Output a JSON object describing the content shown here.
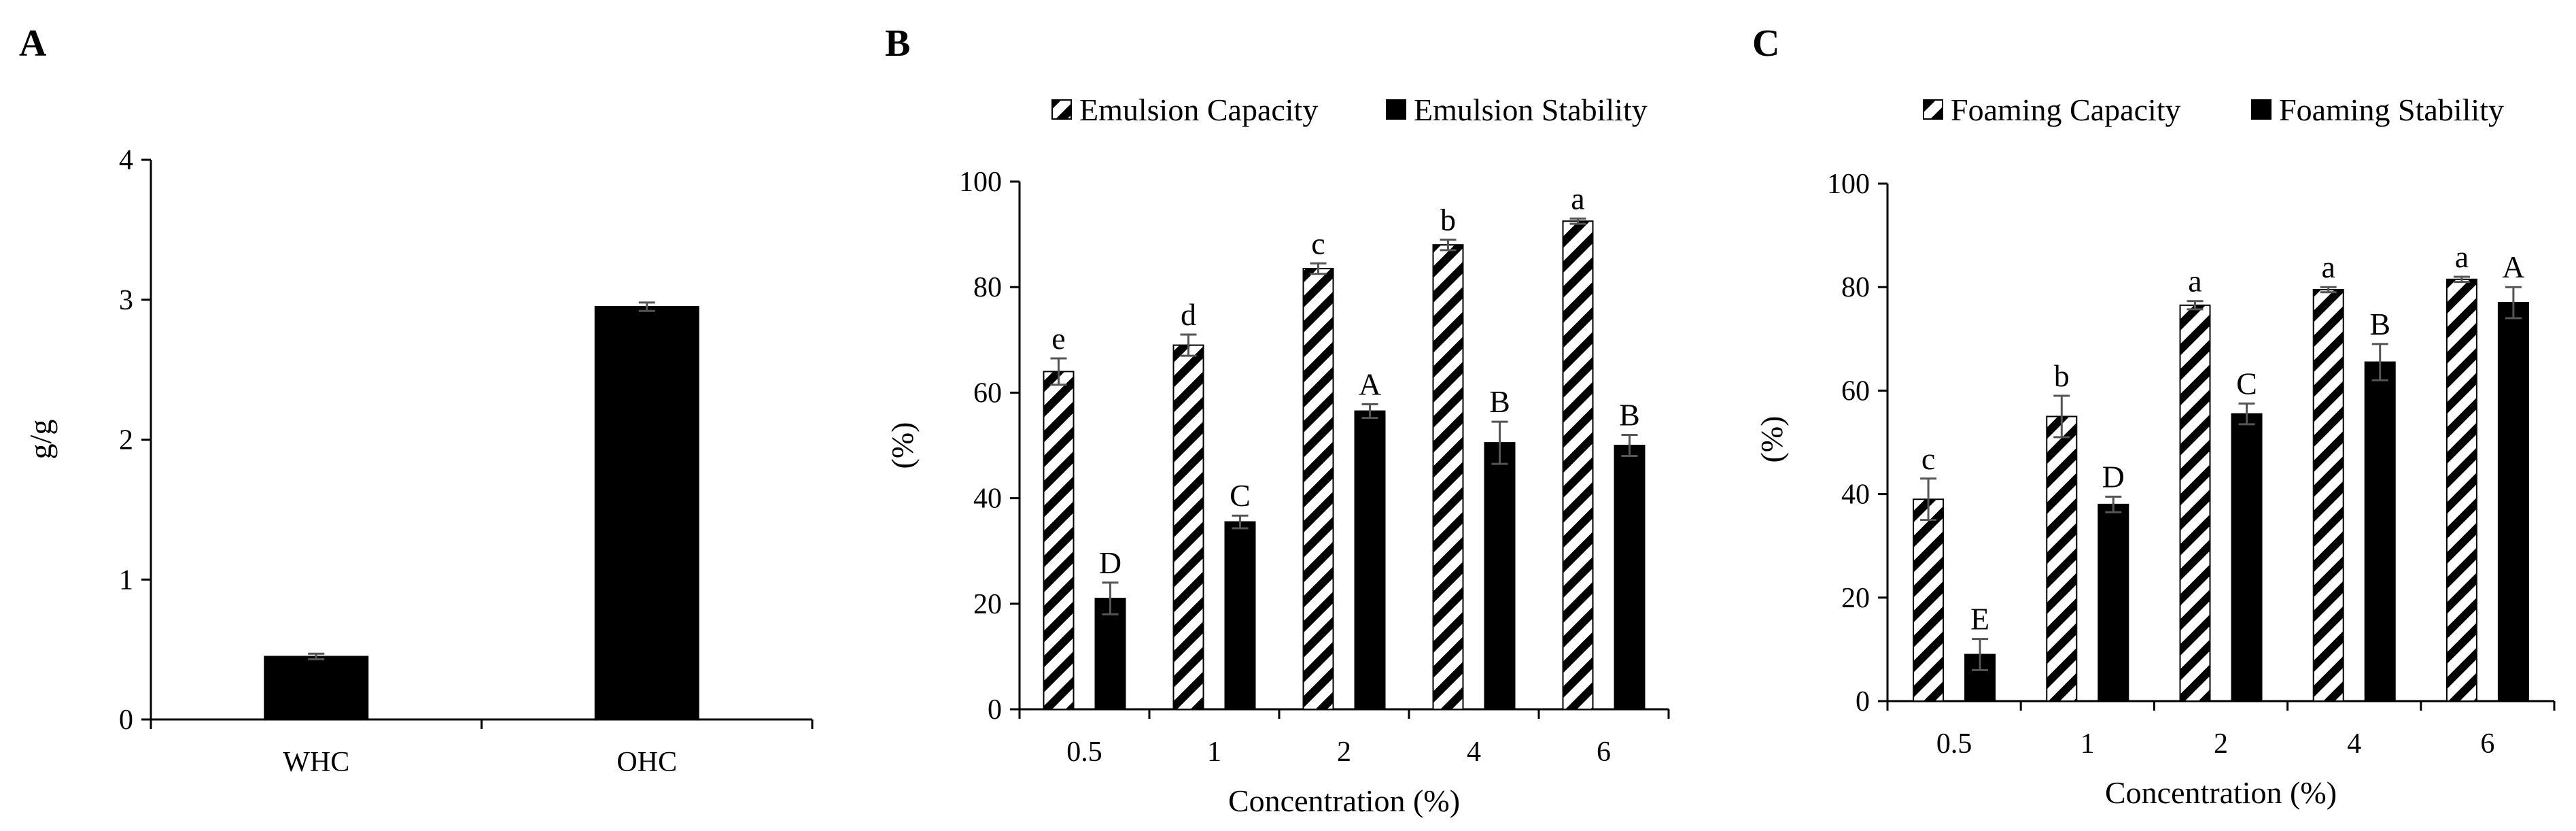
{
  "colors": {
    "bar_solid": "#000000",
    "hatch_bg": "#ffffff",
    "hatch_line": "#000000",
    "error_bar": "#555555"
  },
  "chart_data": [
    {
      "panel": "A",
      "type": "bar",
      "categories": [
        "WHC",
        "OHC"
      ],
      "series": [
        {
          "name": "",
          "values": [
            0.45,
            2.95
          ],
          "errors": [
            0.02,
            0.03
          ],
          "style": "solid"
        }
      ],
      "xlabel": "",
      "ylabel": "g/g",
      "ylim": [
        0,
        4
      ],
      "yticks": [
        0,
        1,
        2,
        3,
        4
      ],
      "legend": []
    },
    {
      "panel": "B",
      "type": "bar",
      "categories": [
        "0.5",
        "1",
        "2",
        "4",
        "6"
      ],
      "series": [
        {
          "name": "Emulsion Capacity",
          "values": [
            64,
            69,
            83.5,
            88,
            92.5
          ],
          "errors": [
            2.5,
            2,
            1,
            1,
            0.5
          ],
          "labels": [
            "e",
            "d",
            "c",
            "b",
            "a"
          ],
          "style": "hatch"
        },
        {
          "name": "Emulsion Stability",
          "values": [
            21,
            35.5,
            56.5,
            50.5,
            50
          ],
          "errors": [
            3,
            1.2,
            1.3,
            4,
            2
          ],
          "labels": [
            "D",
            "C",
            "A",
            "B",
            "B"
          ],
          "style": "solid"
        }
      ],
      "xlabel": "Concentration (%)",
      "ylabel": "(%)",
      "ylim": [
        0,
        100
      ],
      "yticks": [
        0,
        20,
        40,
        60,
        80,
        100
      ],
      "legend": [
        "Emulsion Capacity",
        "Emulsion Stability"
      ]
    },
    {
      "panel": "C",
      "type": "bar",
      "categories": [
        "0.5",
        "1",
        "2",
        "4",
        "6"
      ],
      "series": [
        {
          "name": "Foaming Capacity",
          "values": [
            39,
            55,
            76.5,
            79.5,
            81.5
          ],
          "errors": [
            4,
            4,
            0.8,
            0.5,
            0.5
          ],
          "labels": [
            "c",
            "b",
            "a",
            "a",
            "a"
          ],
          "style": "hatch"
        },
        {
          "name": "Foaming Stability",
          "values": [
            9,
            38,
            55.5,
            65.5,
            77
          ],
          "errors": [
            3,
            1.5,
            2,
            3.5,
            3
          ],
          "labels": [
            "E",
            "D",
            "C",
            "B",
            "A"
          ],
          "style": "solid"
        }
      ],
      "xlabel": "Concentration (%)",
      "ylabel": "(%)",
      "ylim": [
        0,
        100
      ],
      "yticks": [
        0,
        20,
        40,
        60,
        80,
        100
      ],
      "legend": [
        "Foaming Capacity",
        "Foaming Stability"
      ]
    }
  ]
}
